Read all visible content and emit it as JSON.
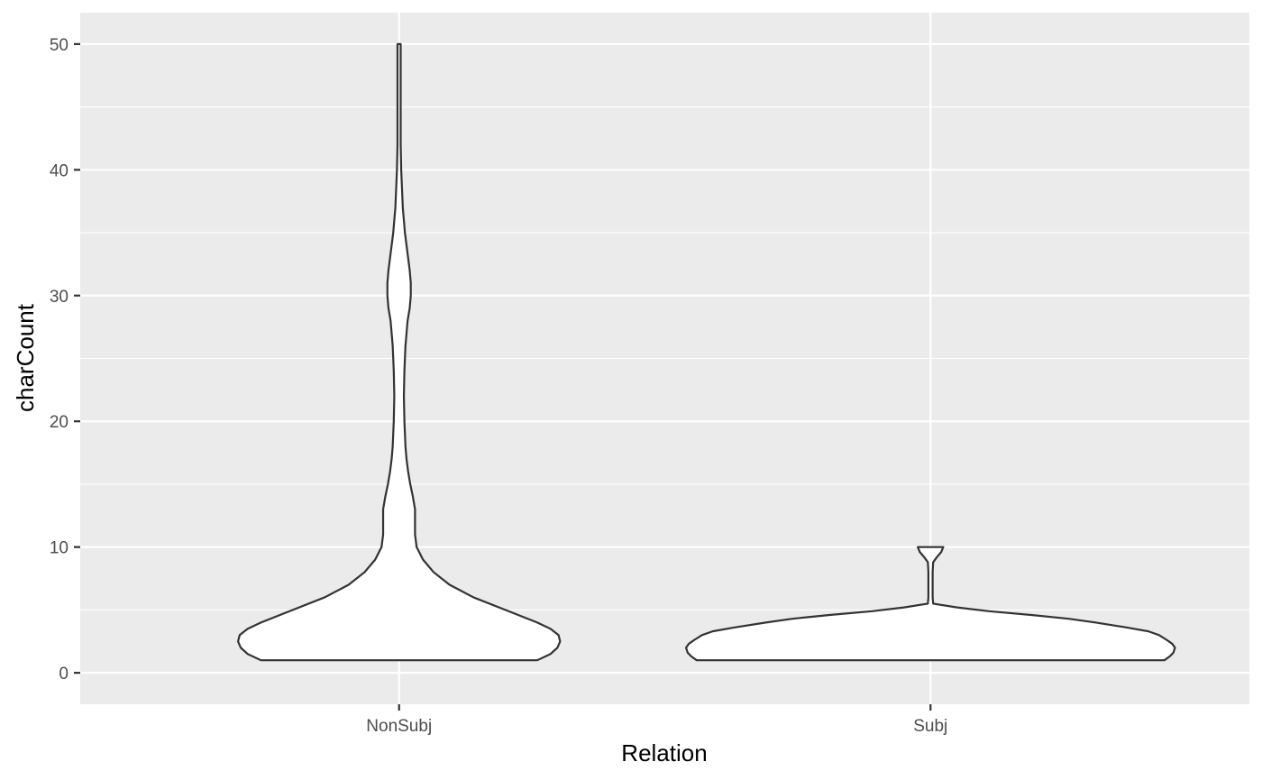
{
  "chart_data": {
    "type": "violin",
    "title": "",
    "xlabel": "Relation",
    "ylabel": "charCount",
    "categories": [
      "NonSubj",
      "Subj"
    ],
    "ylim": [
      -2.5,
      52.5
    ],
    "yticks": [
      0,
      10,
      20,
      30,
      40,
      50
    ],
    "yticks_minor": [
      5,
      15,
      25,
      35,
      45
    ],
    "grid": true,
    "background": "#ebebeb",
    "grid_color": "#ffffff",
    "violin_fill": "#ffffff",
    "violin_stroke": "#333333",
    "series": [
      {
        "category": "NonSubj",
        "y_range": [
          1,
          50
        ],
        "profile": [
          [
            1,
            0.26
          ],
          [
            1.5,
            0.285
          ],
          [
            2,
            0.298
          ],
          [
            2.5,
            0.303
          ],
          [
            3,
            0.3
          ],
          [
            3.5,
            0.285
          ],
          [
            4,
            0.26
          ],
          [
            4.5,
            0.23
          ],
          [
            5,
            0.2
          ],
          [
            6,
            0.14
          ],
          [
            7,
            0.095
          ],
          [
            8,
            0.065
          ],
          [
            9,
            0.045
          ],
          [
            10,
            0.033
          ],
          [
            11,
            0.03
          ],
          [
            12,
            0.03
          ],
          [
            13,
            0.03
          ],
          [
            14,
            0.026
          ],
          [
            15,
            0.021
          ],
          [
            16,
            0.017
          ],
          [
            17,
            0.014
          ],
          [
            18,
            0.012
          ],
          [
            20,
            0.01
          ],
          [
            22,
            0.009
          ],
          [
            24,
            0.01
          ],
          [
            26,
            0.012
          ],
          [
            27,
            0.014
          ],
          [
            28,
            0.016
          ],
          [
            29,
            0.02
          ],
          [
            30,
            0.022
          ],
          [
            31,
            0.022
          ],
          [
            32,
            0.02
          ],
          [
            33,
            0.017
          ],
          [
            34,
            0.014
          ],
          [
            35,
            0.011
          ],
          [
            36,
            0.009
          ],
          [
            37,
            0.007
          ],
          [
            38,
            0.006
          ],
          [
            40,
            0.004
          ],
          [
            42,
            0.003
          ],
          [
            45,
            0.003
          ],
          [
            48,
            0.003
          ],
          [
            50,
            0.003
          ]
        ]
      },
      {
        "category": "Subj",
        "y_range": [
          1,
          10
        ],
        "profile": [
          [
            1,
            0.44
          ],
          [
            1.3,
            0.45
          ],
          [
            1.6,
            0.457
          ],
          [
            2,
            0.46
          ],
          [
            2.3,
            0.455
          ],
          [
            2.6,
            0.445
          ],
          [
            3,
            0.43
          ],
          [
            3.3,
            0.41
          ],
          [
            3.6,
            0.37
          ],
          [
            4,
            0.31
          ],
          [
            4.3,
            0.26
          ],
          [
            4.6,
            0.19
          ],
          [
            4.9,
            0.11
          ],
          [
            5.2,
            0.05
          ],
          [
            5.5,
            0.005
          ],
          [
            6,
            0.004
          ],
          [
            7,
            0.004
          ],
          [
            8,
            0.004
          ],
          [
            8.8,
            0.005
          ],
          [
            9.2,
            0.012
          ],
          [
            9.6,
            0.02
          ],
          [
            10,
            0.024
          ]
        ]
      }
    ]
  }
}
